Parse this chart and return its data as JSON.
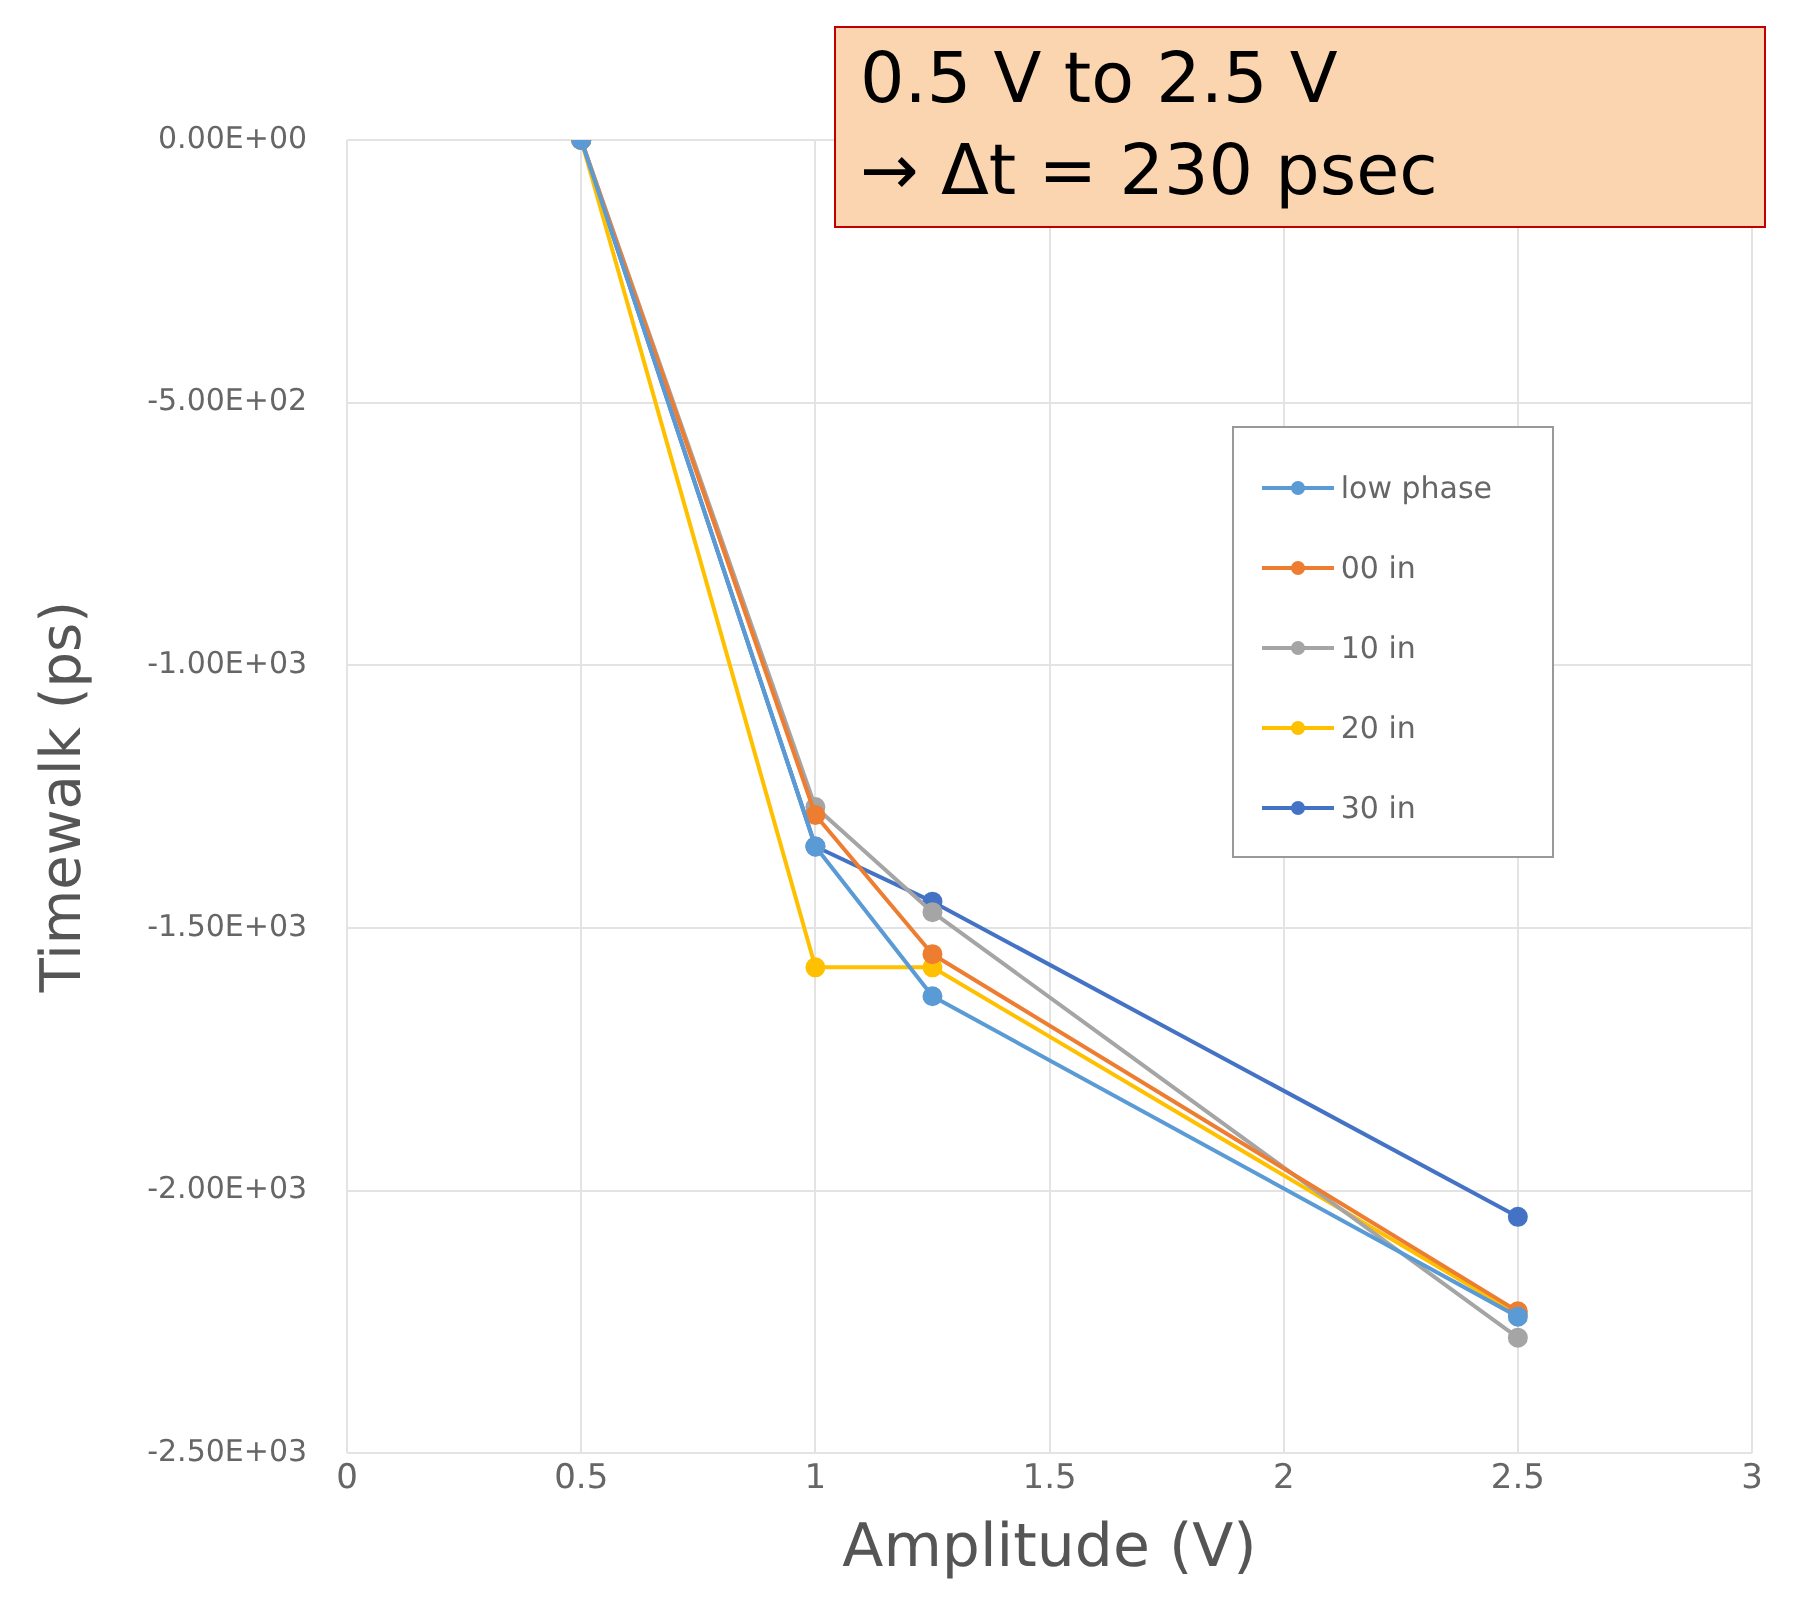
{
  "chart_data": {
    "type": "line",
    "xlabel": "Amplitude (V)",
    "ylabel": "Timewalk (ps)",
    "annotations": [
      "0.5 V to 2.5 V\n→ Δt = 230 psec"
    ],
    "x": [
      0.5,
      1,
      1.25,
      2.5
    ],
    "series": [
      {
        "name": "low phase",
        "color": "#5b9bd5",
        "values": [
          0,
          -1345,
          -1630,
          -2240
        ]
      },
      {
        "name": "00 in",
        "color": "#ed7d31",
        "values": [
          0,
          -1285,
          -1550,
          -2230
        ]
      },
      {
        "name": "10 in",
        "color": "#a5a5a5",
        "values": [
          0,
          -1270,
          -1470,
          -2280
        ]
      },
      {
        "name": "20 in",
        "color": "#ffc000",
        "values": [
          0,
          -1575,
          -1575,
          -2235
        ]
      },
      {
        "name": "30 in",
        "color": "#4472c4",
        "values": [
          0,
          -1345,
          -1450,
          -2050
        ]
      }
    ],
    "xlim": [
      0,
      3
    ],
    "xticks": [
      0,
      0.5,
      1,
      1.5,
      2,
      2.5,
      3
    ],
    "ylim": [
      -2500,
      0
    ],
    "yticks": [
      {
        "value": 0,
        "label": "0.00E+00"
      },
      {
        "value": -500,
        "label": "-5.00E+02"
      },
      {
        "value": -1000,
        "label": "-1.00E+03"
      },
      {
        "value": -1500,
        "label": "-1.50E+03"
      },
      {
        "value": -2000,
        "label": "-2.00E+03"
      },
      {
        "value": -2500,
        "label": "-2.50E+03"
      }
    ],
    "grid": true,
    "legend": "top right",
    "marker": "circle",
    "line_style": "solid"
  }
}
